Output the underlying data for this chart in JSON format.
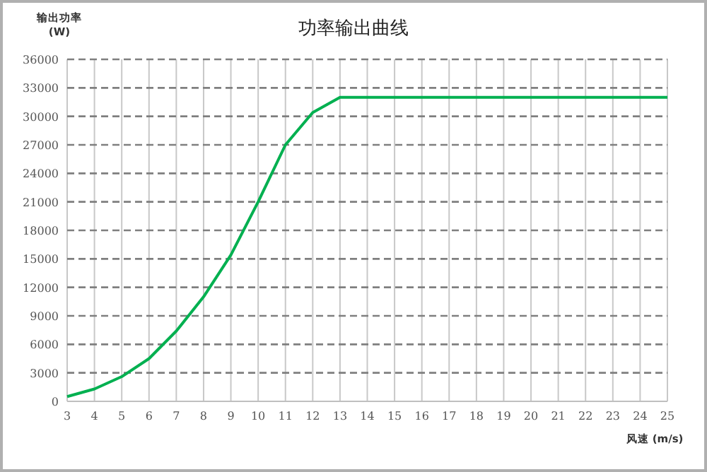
{
  "chart_data": {
    "type": "line",
    "title": "功率输出曲线",
    "xlabel": "风速 (m/s)",
    "ylabel": "输出功率 (W)",
    "x": [
      3,
      4,
      5,
      6,
      7,
      8,
      9,
      10,
      11,
      12,
      13,
      14,
      15,
      16,
      17,
      18,
      19,
      20,
      21,
      22,
      23,
      24,
      25
    ],
    "series": [
      {
        "color": "#00b050",
        "values": [
          500,
          1300,
          2600,
          4500,
          7400,
          11000,
          15400,
          21000,
          27000,
          30400,
          32000,
          32000,
          32000,
          32000,
          32000,
          32000,
          32000,
          32000,
          32000,
          32000,
          32000,
          32000,
          32000
        ]
      }
    ],
    "xlim": [
      3,
      25
    ],
    "ylim": [
      0,
      36000
    ],
    "xticks": [
      3,
      4,
      5,
      6,
      7,
      8,
      9,
      10,
      11,
      12,
      13,
      14,
      15,
      16,
      17,
      18,
      19,
      20,
      21,
      22,
      23,
      24,
      25
    ],
    "yticks": [
      0,
      3000,
      6000,
      9000,
      12000,
      15000,
      18000,
      21000,
      24000,
      27000,
      30000,
      33000,
      36000
    ],
    "grid": true,
    "marker": "none",
    "line_style": "solid"
  }
}
